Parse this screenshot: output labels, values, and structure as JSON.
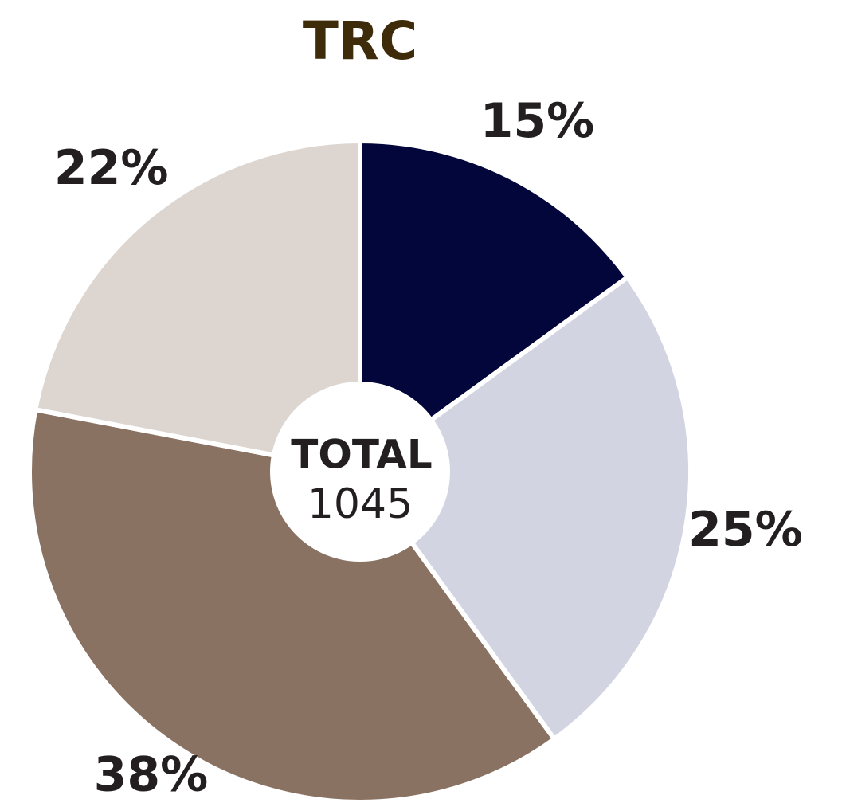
{
  "chart_data": {
    "type": "pie",
    "title": "TRC",
    "values": [
      15,
      25,
      38,
      22
    ],
    "value_labels": [
      "15%",
      "25%",
      "38%",
      "22%"
    ],
    "colors": [
      "#03063a",
      "#d2d4e1",
      "#8a7262",
      "#dcd5d0"
    ],
    "center_label": "TOTAL",
    "center_value": 1045
  }
}
